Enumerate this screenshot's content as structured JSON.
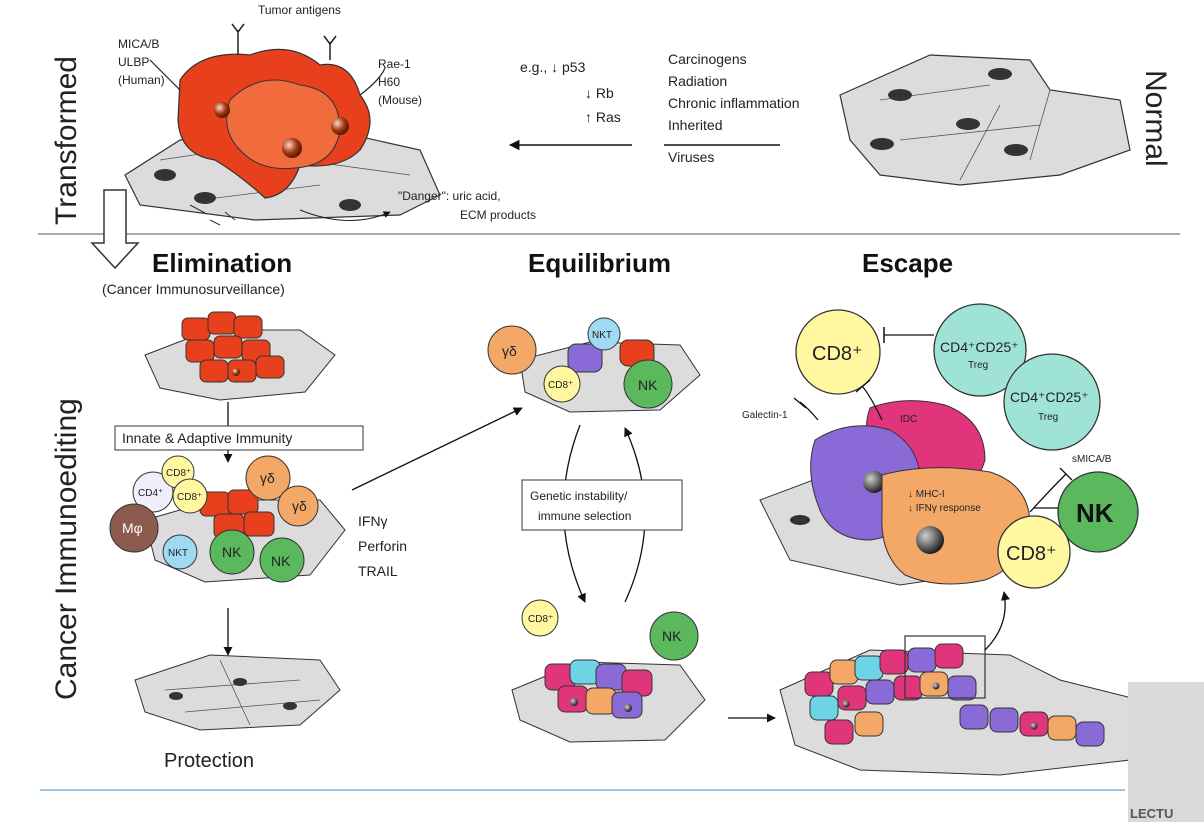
{
  "panels": {
    "transformed_label": "Transformed",
    "normal_label": "Normal",
    "immunoediting_label": "Cancer Immunoediting"
  },
  "top": {
    "ligands_human": [
      "MICA/B",
      "ULBP",
      "(Human)"
    ],
    "tumor_antigens": "Tumor antigens",
    "ligands_mouse": [
      "Rae-1",
      "H60",
      "(Mouse)"
    ],
    "mutations": [
      "e.g., ↓ p53",
      "↓ Rb",
      "↑ Ras"
    ],
    "causes": [
      "Carcinogens",
      "Radiation",
      "Chronic inflammation",
      "Inherited",
      "Viruses"
    ],
    "danger": "\"Danger\": uric acid,",
    "ecm": "ECM products"
  },
  "phases": {
    "elimination": "Elimination",
    "elimination_sub": "(Cancer Immunosurveillance)",
    "equilibrium": "Equilibrium",
    "escape": "Escape"
  },
  "elimination": {
    "immunity_box": "Innate & Adaptive Immunity",
    "effectors": [
      "IFNγ",
      "Perforin",
      "TRAIL"
    ],
    "protection": "Protection",
    "cells": {
      "cd8": "CD8⁺",
      "cd4": "CD4⁺",
      "cd8b": "CD8⁺",
      "gd1": "γδ",
      "gd2": "γδ",
      "mphi": "Mφ",
      "nkt": "NKT",
      "nk1": "NK",
      "nk2": "NK"
    }
  },
  "equilibrium": {
    "box_line1": "Genetic instability/",
    "box_line2": "immune selection",
    "cells": {
      "gd": "γδ",
      "nkt": "NKT",
      "cd8": "CD8⁺",
      "nk": "NK",
      "cd8_low": "CD8⁺",
      "nk_low": "NK"
    }
  },
  "escape": {
    "cd8_top": "CD8⁺",
    "treg1": "CD4⁺CD25⁺",
    "treg1_sub": "Treg",
    "treg2": "CD4⁺CD25⁺",
    "treg2_sub": "Treg",
    "idc": "IDC",
    "galectin": "Galectin-1",
    "smica": "sMICA/B",
    "mhc": "↓ MHC-I",
    "ifn": "↓ IFNγ response",
    "nk": "NK",
    "cd8_bottom": "CD8⁺"
  },
  "watermark": "LECTU",
  "colors": {
    "tumor_red": "#e8401c",
    "tissue_gray": "#d9d9d9",
    "yellow_cell": "#fff8a0",
    "green_cell": "#5cb85c",
    "teal_cell": "#9fe3d6",
    "purple_cell": "#8a6ad6",
    "pink_cell": "#e0357a",
    "orange_cell": "#f4a868"
  }
}
